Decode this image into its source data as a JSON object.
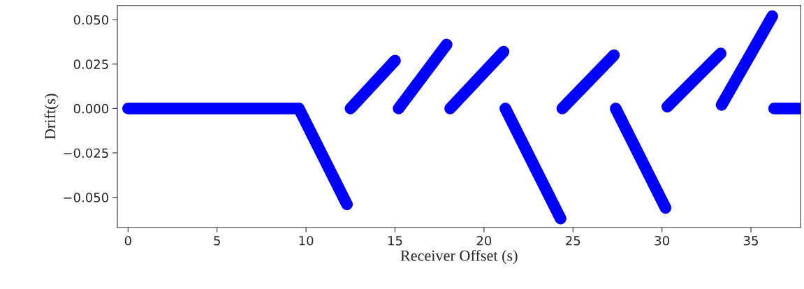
{
  "chart_data": {
    "type": "line",
    "xlabel": "Receiver Offset (s)",
    "ylabel": "Drift(s)",
    "x": [
      0,
      9.6,
      12.3,
      12.4,
      12.5,
      15.0,
      15.1,
      15.2,
      17.9,
      18.0,
      18.1,
      21.1,
      21.15,
      21.2,
      24.3,
      24.35,
      24.4,
      27.3,
      27.35,
      27.4,
      30.2,
      30.25,
      30.3,
      33.3,
      33.32,
      33.35,
      36.2,
      36.25,
      36.3,
      37.7
    ],
    "series": [
      {
        "color": "#0000ff",
        "values": [
          0,
          0,
          -0.054,
          null,
          0.0,
          0.027,
          null,
          0.0,
          0.036,
          null,
          0.0,
          0.032,
          null,
          0.0,
          -0.062,
          null,
          0.0,
          0.03,
          null,
          0.0,
          -0.056,
          null,
          0.001,
          0.031,
          null,
          0.002,
          0.052,
          null,
          0.0,
          0.0
        ]
      }
    ],
    "xlim": [
      -0.6,
      37.8
    ],
    "ylim": [
      -0.067,
      0.058
    ],
    "xticks": [
      0,
      5,
      10,
      15,
      20,
      25,
      30,
      35
    ],
    "yticks": [
      {
        "value": 0.05,
        "label": "0.050"
      },
      {
        "value": 0.025,
        "label": "0.025"
      },
      {
        "value": 0.0,
        "label": "0.000"
      },
      {
        "value": -0.025,
        "label": "−0.025"
      },
      {
        "value": -0.05,
        "label": "−0.050"
      }
    ],
    "grid": false,
    "legend": false,
    "line_style": "solid"
  }
}
